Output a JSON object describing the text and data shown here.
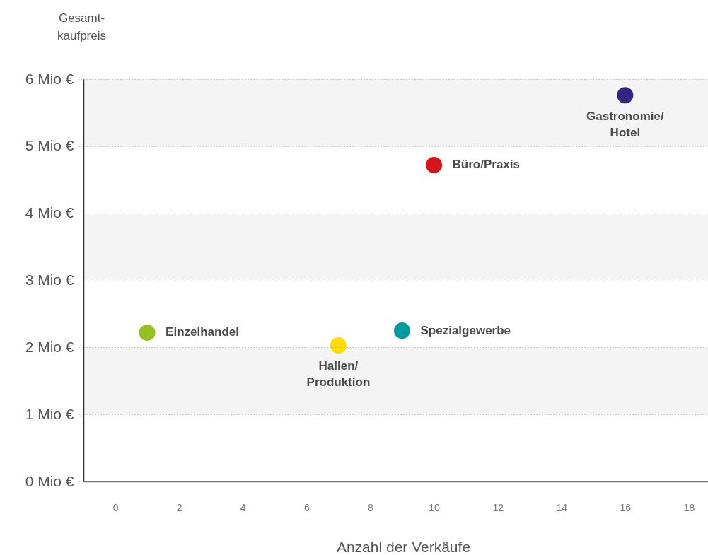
{
  "chart_data": {
    "type": "scatter",
    "xlabel": "Anzahl der Verkäufe",
    "ylabel": "Gesamt-\nkaufpreis",
    "xlim": [
      -1,
      18.6
    ],
    "xticks": [
      0,
      2,
      4,
      6,
      8,
      10,
      12,
      14,
      16,
      18
    ],
    "ylim": [
      0,
      6
    ],
    "yticks": [
      {
        "value": 0,
        "label": "0 Mio €"
      },
      {
        "value": 1,
        "label": "1 Mio €"
      },
      {
        "value": 2,
        "label": "2 Mio €"
      },
      {
        "value": 3,
        "label": "3 Mio €"
      },
      {
        "value": 4,
        "label": "4 Mio €"
      },
      {
        "value": 5,
        "label": "5 Mio €"
      },
      {
        "value": 6,
        "label": "6 Mio €"
      }
    ],
    "grid": "y",
    "marker": "circle",
    "bands": [
      {
        "axis": "y",
        "from": 1,
        "to": 2,
        "color": "#f4f4f4"
      },
      {
        "axis": "y",
        "from": 3,
        "to": 4,
        "color": "#f4f4f4"
      },
      {
        "axis": "y",
        "from": 5,
        "to": 6,
        "color": "#f4f4f4"
      }
    ],
    "series": [
      {
        "name": "Einzelhandel",
        "color": "#95c11f",
        "x": [
          1
        ],
        "values": [
          2.22
        ]
      },
      {
        "name": "Hallen/Produktion",
        "color": "#ffdd00",
        "x": [
          7
        ],
        "values": [
          2.03
        ]
      },
      {
        "name": "Spezialgewerbe",
        "color": "#009aa3",
        "x": [
          9
        ],
        "values": [
          2.25
        ]
      },
      {
        "name": "Büro/Praxis",
        "color": "#d7141a",
        "x": [
          10
        ],
        "values": [
          4.72
        ]
      },
      {
        "name": "Gastronomie/Hotel",
        "color": "#30267f",
        "x": [
          16
        ],
        "values": [
          5.76
        ]
      }
    ]
  }
}
